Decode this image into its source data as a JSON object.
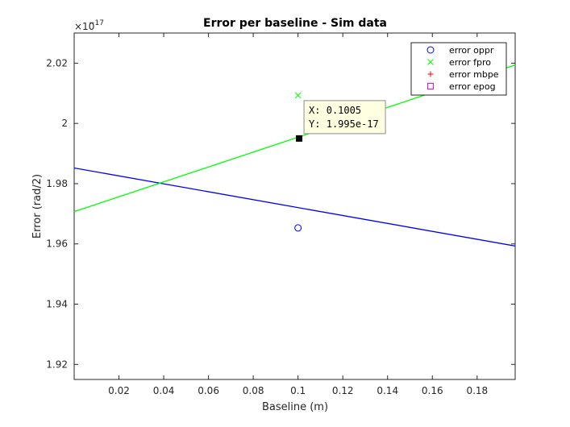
{
  "chart_data": {
    "type": "line",
    "title": "Error per baseline  - Sim data",
    "xlabel": "Baseline (m)",
    "ylabel": "Error (rad/2)",
    "y_exponent_label": "×10",
    "y_exponent": "−17",
    "xlim": [
      0.0,
      0.197
    ],
    "ylim": [
      1.915,
      2.03
    ],
    "xticks": [
      0.02,
      0.04,
      0.06,
      0.08,
      0.1,
      0.12,
      0.14,
      0.16,
      0.18
    ],
    "xtick_labels": [
      "0.02",
      "0.04",
      "0.06",
      "0.08",
      "0.1",
      "0.12",
      "0.14",
      "0.16",
      "0.18"
    ],
    "yticks": [
      1.92,
      1.94,
      1.96,
      1.98,
      2.0,
      2.02
    ],
    "ytick_labels": [
      "1.92",
      "1.94",
      "1.96",
      "1.98",
      "2",
      "2.02"
    ],
    "grid": false,
    "legend_position": "top-right",
    "series": [
      {
        "name": "error oppr",
        "marker": "circle",
        "color": "#0000ff",
        "x": [
          0.1
        ],
        "y": [
          1.9653
        ]
      },
      {
        "name": "error fpro",
        "marker": "x",
        "color": "#00ff00",
        "x": [
          0.1
        ],
        "y": [
          2.0093
        ]
      },
      {
        "name": "error mbpe",
        "marker": "plus",
        "color": "#ff0000",
        "x": [],
        "y": []
      },
      {
        "name": "error epog",
        "marker": "square",
        "color": "#ff00ff",
        "x": [],
        "y": []
      }
    ],
    "fit_lines": [
      {
        "color": "#0000ff",
        "x": [
          0.0,
          0.197
        ],
        "y": [
          1.9852,
          1.9593
        ]
      },
      {
        "color": "#00ff00",
        "x": [
          0.0,
          0.197
        ],
        "y": [
          1.9707,
          2.0194
        ]
      }
    ],
    "datatip": {
      "x": 0.1005,
      "y": 1.995,
      "x_text": "X: 0.1005",
      "y_text": "Y: 1.995e-17"
    }
  }
}
